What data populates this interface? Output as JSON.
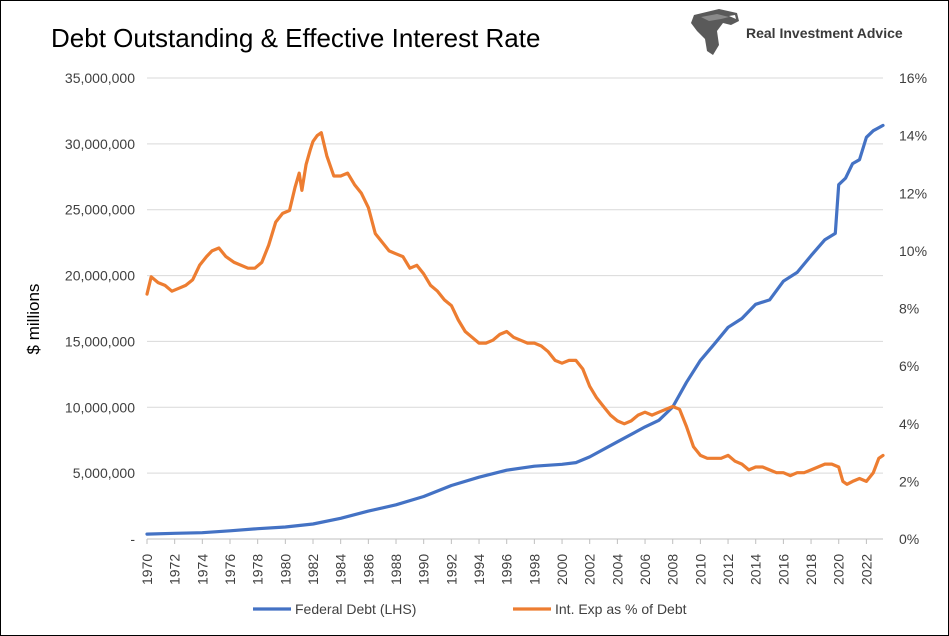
{
  "title": "Debt Outstanding & Effective Interest Rate",
  "brand": {
    "name": "Real Investment Advice",
    "logo_icon": "eagle-head-icon"
  },
  "chart_data": {
    "type": "line",
    "title": "Debt Outstanding & Effective Interest Rate",
    "ylabel": "$ millions",
    "xlabel": "",
    "x_ticks": [
      "1970",
      "1972",
      "1974",
      "1976",
      "1978",
      "1980",
      "1982",
      "1984",
      "1986",
      "1988",
      "1990",
      "1992",
      "1994",
      "1996",
      "1998",
      "2000",
      "2002",
      "2004",
      "2006",
      "2008",
      "2010",
      "2012",
      "2014",
      "2016",
      "2018",
      "2020",
      "2022"
    ],
    "y_left": {
      "ticks": [
        "-",
        "5,000,000",
        "10,000,000",
        "15,000,000",
        "20,000,000",
        "25,000,000",
        "30,000,000",
        "35,000,000"
      ],
      "ylim": [
        0,
        35000000
      ]
    },
    "y_right": {
      "ticks": [
        "0%",
        "2%",
        "4%",
        "6%",
        "8%",
        "10%",
        "12%",
        "14%",
        "16%"
      ],
      "ylim": [
        0,
        16
      ]
    },
    "xlim": [
      1970,
      2023.2
    ],
    "grid": {
      "horizontal": true,
      "color": "#d9d9d9"
    },
    "legend_position": "bottom",
    "series": [
      {
        "name": "Federal Debt (LHS)",
        "axis": "left",
        "color": "#4472c4",
        "x": [
          1970,
          1972,
          1974,
          1976,
          1978,
          1980,
          1982,
          1984,
          1986,
          1988,
          1990,
          1992,
          1994,
          1996,
          1998,
          2000,
          2001,
          2002,
          2004,
          2006,
          2007,
          2008,
          2009,
          2010,
          2011,
          2012,
          2013,
          2014,
          2015,
          2016,
          2017,
          2018,
          2019,
          2019.75,
          2020,
          2020.5,
          2021,
          2021.5,
          2022,
          2022.5,
          2023.2
        ],
        "values": [
          370000,
          430000,
          480000,
          620000,
          780000,
          910000,
          1140000,
          1570000,
          2120000,
          2600000,
          3230000,
          4060000,
          4690000,
          5220000,
          5530000,
          5670000,
          5800000,
          6230000,
          7380000,
          8510000,
          9010000,
          10020000,
          11900000,
          13560000,
          14790000,
          16070000,
          16740000,
          17820000,
          18150000,
          19570000,
          20240000,
          21520000,
          22720000,
          23200000,
          26900000,
          27400000,
          28500000,
          28800000,
          30500000,
          31000000,
          31400000
        ]
      },
      {
        "name": "Int. Exp as % of Debt",
        "axis": "right",
        "color": "#ed7d31",
        "x": [
          1970,
          1970.3,
          1970.8,
          1971.3,
          1971.8,
          1972.3,
          1972.8,
          1973.3,
          1973.8,
          1974.3,
          1974.7,
          1975.2,
          1975.7,
          1976.3,
          1977.3,
          1977.8,
          1978.3,
          1978.8,
          1979.3,
          1979.8,
          1980.3,
          1980.7,
          1981.0,
          1981.2,
          1981.5,
          1981.8,
          1982.0,
          1982.3,
          1982.6,
          1983.0,
          1983.5,
          1984.0,
          1984.5,
          1985.0,
          1985.5,
          1986.0,
          1986.5,
          1987.0,
          1987.5,
          1988.0,
          1988.5,
          1989.0,
          1989.5,
          1990.0,
          1990.5,
          1991.0,
          1991.5,
          1992.0,
          1992.5,
          1993.0,
          1993.5,
          1994.0,
          1994.5,
          1995.0,
          1995.5,
          1996.0,
          1996.5,
          1997.0,
          1997.5,
          1998.0,
          1998.5,
          1999.0,
          1999.5,
          2000.0,
          2000.5,
          2001.0,
          2001.5,
          2002.0,
          2002.5,
          2003.0,
          2003.5,
          2004.0,
          2004.5,
          2005.0,
          2005.5,
          2006.0,
          2006.5,
          2007.0,
          2007.5,
          2008.0,
          2008.5,
          2009.0,
          2009.5,
          2010.0,
          2010.5,
          2011.0,
          2011.5,
          2012.0,
          2012.5,
          2013.0,
          2013.5,
          2014.0,
          2014.5,
          2015.0,
          2015.5,
          2016.0,
          2016.5,
          2017.0,
          2017.5,
          2018.0,
          2018.5,
          2019.0,
          2019.5,
          2020.0,
          2020.3,
          2020.6,
          2021.0,
          2021.5,
          2022.0,
          2022.5,
          2022.9,
          2023.2
        ],
        "values": [
          8.5,
          9.1,
          8.9,
          8.8,
          8.6,
          8.7,
          8.8,
          9.0,
          9.5,
          9.8,
          10.0,
          10.1,
          9.8,
          9.6,
          9.4,
          9.4,
          9.6,
          10.2,
          11.0,
          11.3,
          11.4,
          12.2,
          12.7,
          12.1,
          13.0,
          13.5,
          13.8,
          14.0,
          14.1,
          13.3,
          12.6,
          12.6,
          12.7,
          12.3,
          12.0,
          11.5,
          10.6,
          10.3,
          10.0,
          9.9,
          9.8,
          9.4,
          9.5,
          9.2,
          8.8,
          8.6,
          8.3,
          8.1,
          7.6,
          7.2,
          7.0,
          6.8,
          6.8,
          6.9,
          7.1,
          7.2,
          7.0,
          6.9,
          6.8,
          6.8,
          6.7,
          6.5,
          6.2,
          6.1,
          6.2,
          6.2,
          5.9,
          5.3,
          4.9,
          4.6,
          4.3,
          4.1,
          4.0,
          4.1,
          4.3,
          4.4,
          4.3,
          4.4,
          4.5,
          4.6,
          4.5,
          3.9,
          3.2,
          2.9,
          2.8,
          2.8,
          2.8,
          2.9,
          2.7,
          2.6,
          2.4,
          2.5,
          2.5,
          2.4,
          2.3,
          2.3,
          2.2,
          2.3,
          2.3,
          2.4,
          2.5,
          2.6,
          2.6,
          2.5,
          2.0,
          1.9,
          2.0,
          2.1,
          2.0,
          2.3,
          2.8,
          2.9
        ]
      }
    ]
  }
}
